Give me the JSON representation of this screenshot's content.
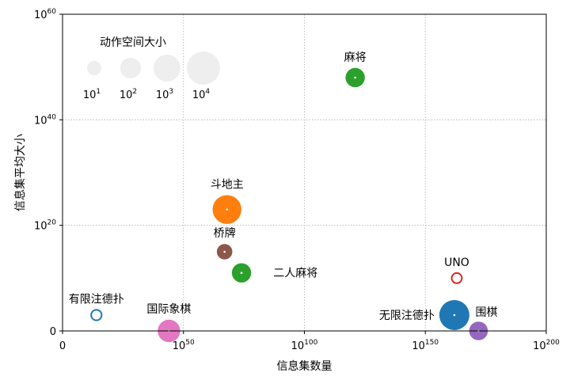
{
  "chart_data": {
    "type": "scatter",
    "xlabel": "信息集数量",
    "ylabel": "信息集平均大小",
    "xscale": "log",
    "yscale": "log",
    "xlim": [
      0,
      200
    ],
    "ylim": [
      0,
      60
    ],
    "x_ticks": [
      {
        "base": "0",
        "exp": ""
      },
      {
        "base": "10",
        "exp": "50"
      },
      {
        "base": "10",
        "exp": "100"
      },
      {
        "base": "10",
        "exp": "150"
      },
      {
        "base": "10",
        "exp": "200"
      }
    ],
    "y_ticks": [
      {
        "base": "0",
        "exp": ""
      },
      {
        "base": "10",
        "exp": "20"
      },
      {
        "base": "10",
        "exp": "40"
      },
      {
        "base": "10",
        "exp": "60"
      }
    ],
    "x_tick_values": [
      0,
      50,
      100,
      150,
      200
    ],
    "y_tick_values": [
      0,
      20,
      40,
      60
    ],
    "grid": true,
    "grid_style": "dotted",
    "points": [
      {
        "label": "有限注德扑",
        "x_exp": 14,
        "y_exp": 3,
        "action_space_exp": 0.4,
        "color": "#1f77b4",
        "hollow": true,
        "label_pos": "above"
      },
      {
        "label": "国际象棋",
        "x_exp": 44,
        "y_exp": 0,
        "action_space_exp": 2.3,
        "color": "#e377c2",
        "hollow": false,
        "label_pos": "above"
      },
      {
        "label": "斗地主",
        "x_exp": 68,
        "y_exp": 23,
        "action_space_exp": 3.3,
        "color": "#ff7f0e",
        "hollow": false,
        "label_pos": "above"
      },
      {
        "label": "桥牌",
        "x_exp": 67,
        "y_exp": 15,
        "action_space_exp": 1.2,
        "color": "#8c564b",
        "hollow": false,
        "label_pos": "above"
      },
      {
        "label": "二人麻将",
        "x_exp": 74,
        "y_exp": 11,
        "action_space_exp": 1.8,
        "color": "#2ca02c",
        "hollow": false,
        "label_pos": "right"
      },
      {
        "label": "麻将",
        "x_exp": 121,
        "y_exp": 48,
        "action_space_exp": 1.8,
        "color": "#2ca02c",
        "hollow": false,
        "label_pos": "above"
      },
      {
        "label": "UNO",
        "x_exp": 163,
        "y_exp": 10,
        "action_space_exp": 0.35,
        "color": "#d62728",
        "hollow": true,
        "label_pos": "above"
      },
      {
        "label": "无限注德扑",
        "x_exp": 162,
        "y_exp": 3,
        "action_space_exp": 3.5,
        "color": "#1f77b4",
        "hollow": false,
        "label_pos": "left"
      },
      {
        "label": "围棋",
        "x_exp": 172,
        "y_exp": 0,
        "action_space_exp": 1.7,
        "color": "#9467bd",
        "hollow": false,
        "label_pos": "above-right"
      }
    ],
    "size_legend": {
      "title": "动作空间大小",
      "placement": "top-left",
      "color": "#eeeeee",
      "entries": [
        {
          "base": "10",
          "exp": "1",
          "value_exp": 1
        },
        {
          "base": "10",
          "exp": "2",
          "value_exp": 2
        },
        {
          "base": "10",
          "exp": "3",
          "value_exp": 3
        },
        {
          "base": "10",
          "exp": "4",
          "value_exp": 4
        }
      ]
    }
  }
}
